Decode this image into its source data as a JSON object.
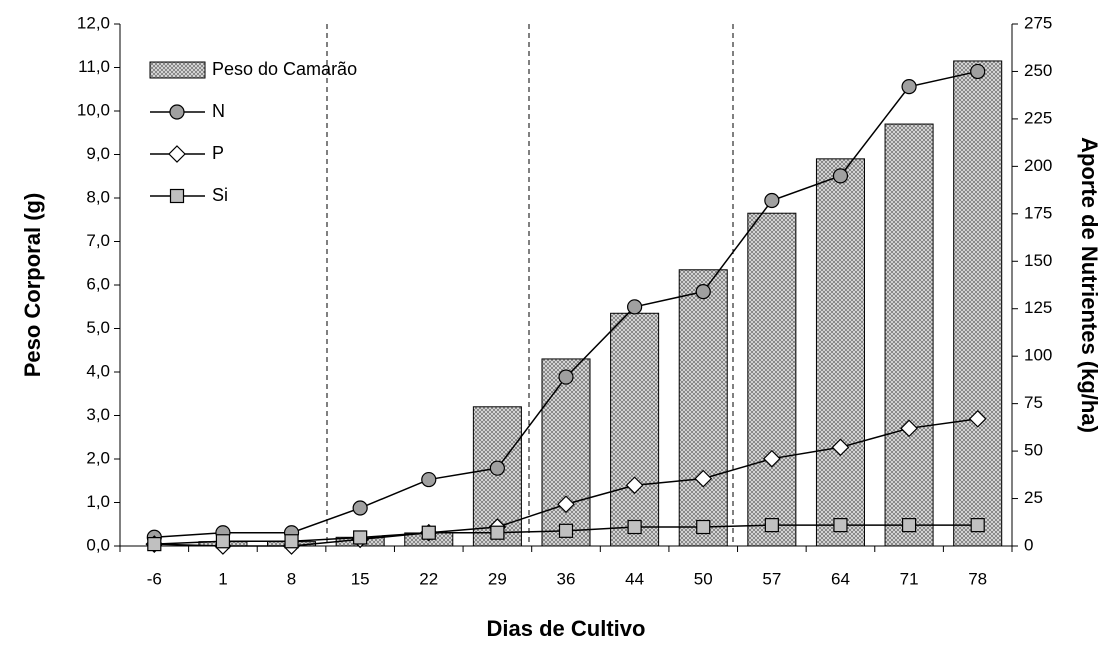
{
  "chart_data": {
    "type": "bar-line",
    "x_label": "Dias de Cultivo",
    "y_label": "Peso Corporal (g)",
    "y2_label": "Aporte de Nutrientes (kg/ha)",
    "categories": [
      "-6",
      "1",
      "8",
      "15",
      "22",
      "29",
      "36",
      "44",
      "50",
      "57",
      "64",
      "71",
      "78"
    ],
    "series": [
      {
        "name": "Peso do Camarão",
        "type": "bar",
        "color": "#c8c8c8",
        "values": [
          0,
          0.1,
          0.1,
          0.2,
          0.3,
          3.2,
          4.3,
          5.35,
          6.35,
          7.65,
          8.9,
          9.7,
          11.15
        ]
      },
      {
        "name": "N",
        "type": "line",
        "axis": "y2",
        "marker": "circle",
        "color": "#a0a0a0",
        "values": [
          4.6,
          7,
          7,
          20,
          35,
          41,
          89,
          126,
          134,
          182,
          195,
          242,
          250
        ]
      },
      {
        "name": "P",
        "type": "line",
        "axis": "y2",
        "marker": "diamond",
        "color": "#ffffff",
        "values": [
          1,
          0,
          0,
          3.5,
          7,
          10,
          22,
          32,
          35.5,
          46,
          52,
          62,
          67
        ]
      },
      {
        "name": "Si",
        "type": "line",
        "axis": "y2",
        "marker": "square",
        "color": "#c0c0c0",
        "values": [
          1,
          2.5,
          2.5,
          4.5,
          7,
          7,
          8,
          10,
          10,
          11,
          11,
          11,
          11
        ]
      }
    ],
    "ylim": [
      0,
      12
    ],
    "yticks": [
      {
        "value": 0,
        "label": "0,0"
      },
      {
        "value": 1,
        "label": "1,0"
      },
      {
        "value": 2,
        "label": "2,0"
      },
      {
        "value": 3,
        "label": "3,0"
      },
      {
        "value": 4,
        "label": "4,0"
      },
      {
        "value": 5,
        "label": "5,0"
      },
      {
        "value": 6,
        "label": "6,0"
      },
      {
        "value": 7,
        "label": "7,0"
      },
      {
        "value": 8,
        "label": "8,0"
      },
      {
        "value": 9,
        "label": "9,0"
      },
      {
        "value": 10,
        "label": "10,0"
      },
      {
        "value": 11,
        "label": "11,0"
      },
      {
        "value": 12,
        "label": "12,0"
      }
    ],
    "y2lim": [
      0,
      275
    ],
    "y2ticks": [
      0,
      25,
      50,
      75,
      100,
      125,
      150,
      175,
      200,
      225,
      250,
      275
    ],
    "legend": "upper left",
    "grid": false
  }
}
